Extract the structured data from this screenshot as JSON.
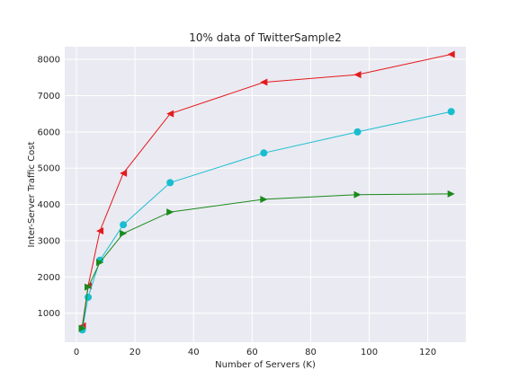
{
  "chart_data": {
    "type": "line",
    "title": "10% data of TwitterSample2",
    "xlabel": "Number of Servers (K)",
    "ylabel": "Inter-Server Traffic Cost",
    "xlim": [
      -4,
      133
    ],
    "ylim": [
      200,
      8350
    ],
    "xticks": [
      0,
      20,
      40,
      60,
      80,
      100,
      120
    ],
    "yticks": [
      1000,
      2000,
      3000,
      4000,
      5000,
      6000,
      7000,
      8000
    ],
    "grid": true,
    "background": "#eaeaf2",
    "x": [
      2,
      4,
      8,
      16,
      32,
      64,
      96,
      128
    ],
    "series": [
      {
        "color": "#e41a1c",
        "marker": "triangle-left",
        "values": [
          650,
          1750,
          3270,
          4860,
          6500,
          7370,
          7580,
          8140
        ]
      },
      {
        "color": "#17becf",
        "marker": "circle",
        "values": [
          540,
          1440,
          2460,
          3440,
          4600,
          5420,
          6000,
          6560
        ]
      },
      {
        "color": "#1a8a1a",
        "marker": "triangle-right",
        "values": [
          580,
          1720,
          2400,
          3200,
          3790,
          4140,
          4270,
          4290
        ]
      }
    ]
  }
}
